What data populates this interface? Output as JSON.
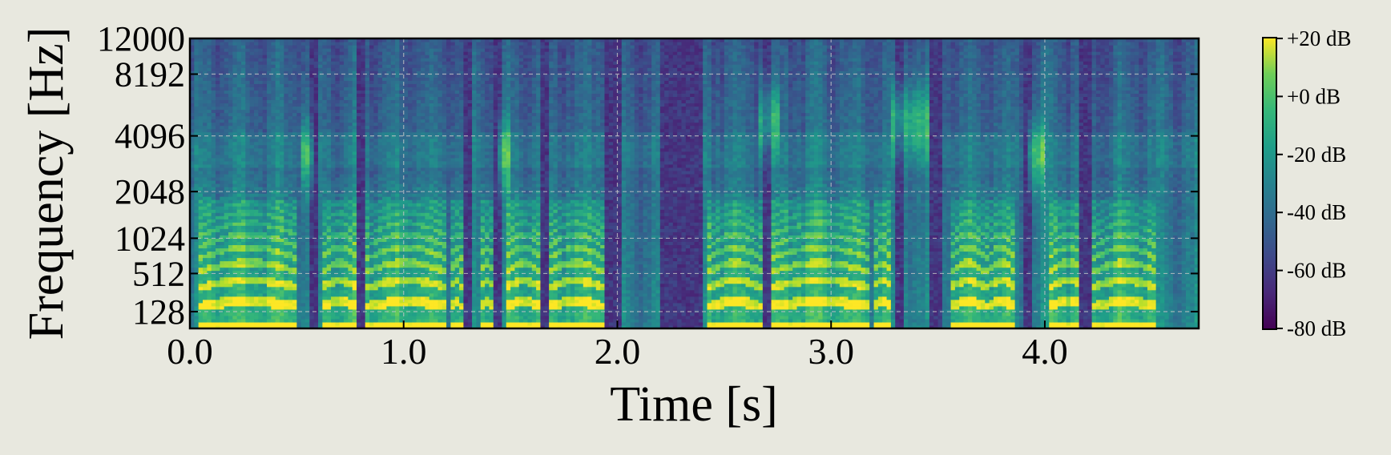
{
  "chart_data": {
    "type": "heatmap",
    "title": "",
    "xlabel": "Time [s]",
    "ylabel": "Frequency [Hz]",
    "x_range": [
      0.0,
      4.72
    ],
    "x_ticks": [
      0.0,
      1.0,
      2.0,
      3.0,
      4.0
    ],
    "x_tick_labels": [
      "0.0",
      "1.0",
      "2.0",
      "3.0",
      "4.0"
    ],
    "y_scale": "mel-like",
    "y_range": [
      0,
      12000
    ],
    "y_ticks": [
      128,
      512,
      1024,
      2048,
      4096,
      8192,
      12000
    ],
    "y_tick_labels": [
      "128",
      "512",
      "1024",
      "2048",
      "4096",
      "8192",
      "12000"
    ],
    "grid": true,
    "colormap": "viridis",
    "colorbar": {
      "range": [
        -80,
        20
      ],
      "ticks": [
        20,
        0,
        -20,
        -40,
        -60,
        -80
      ],
      "tick_labels": [
        "+20 dB",
        "+0 dB",
        "-20 dB",
        "-40 dB",
        "-60 dB",
        "-80 dB"
      ]
    },
    "voiced_segments_s": [
      [
        0.05,
        0.5
      ],
      [
        0.62,
        0.78
      ],
      [
        0.83,
        1.2
      ],
      [
        1.22,
        1.27
      ],
      [
        1.36,
        1.42
      ],
      [
        1.48,
        1.64
      ],
      [
        1.68,
        1.93
      ],
      [
        2.43,
        2.67
      ],
      [
        2.72,
        3.18
      ],
      [
        3.2,
        3.28
      ],
      [
        3.56,
        3.72
      ],
      [
        3.73,
        3.86
      ],
      [
        4.02,
        4.2
      ],
      [
        4.23,
        4.52
      ]
    ],
    "silence_s": [
      [
        0.56,
        0.6
      ],
      [
        0.79,
        0.82
      ],
      [
        1.28,
        1.32
      ],
      [
        1.43,
        1.46
      ],
      [
        1.65,
        1.67
      ],
      [
        1.95,
        2.02
      ],
      [
        2.2,
        2.4
      ],
      [
        2.68,
        2.71
      ],
      [
        3.3,
        3.34
      ],
      [
        3.46,
        3.52
      ],
      [
        3.9,
        3.94
      ],
      [
        4.17,
        4.22
      ]
    ],
    "fricatives_s": [
      [
        0.52,
        0.58,
        "mid"
      ],
      [
        1.44,
        1.49,
        "mid"
      ],
      [
        2.67,
        2.75,
        "high"
      ],
      [
        3.28,
        3.45,
        "high"
      ],
      [
        3.92,
        4.0,
        "mid"
      ]
    ]
  },
  "colors": {
    "background": "#e8e8df",
    "grid": "#c8c8c8",
    "frame": "#000000"
  }
}
